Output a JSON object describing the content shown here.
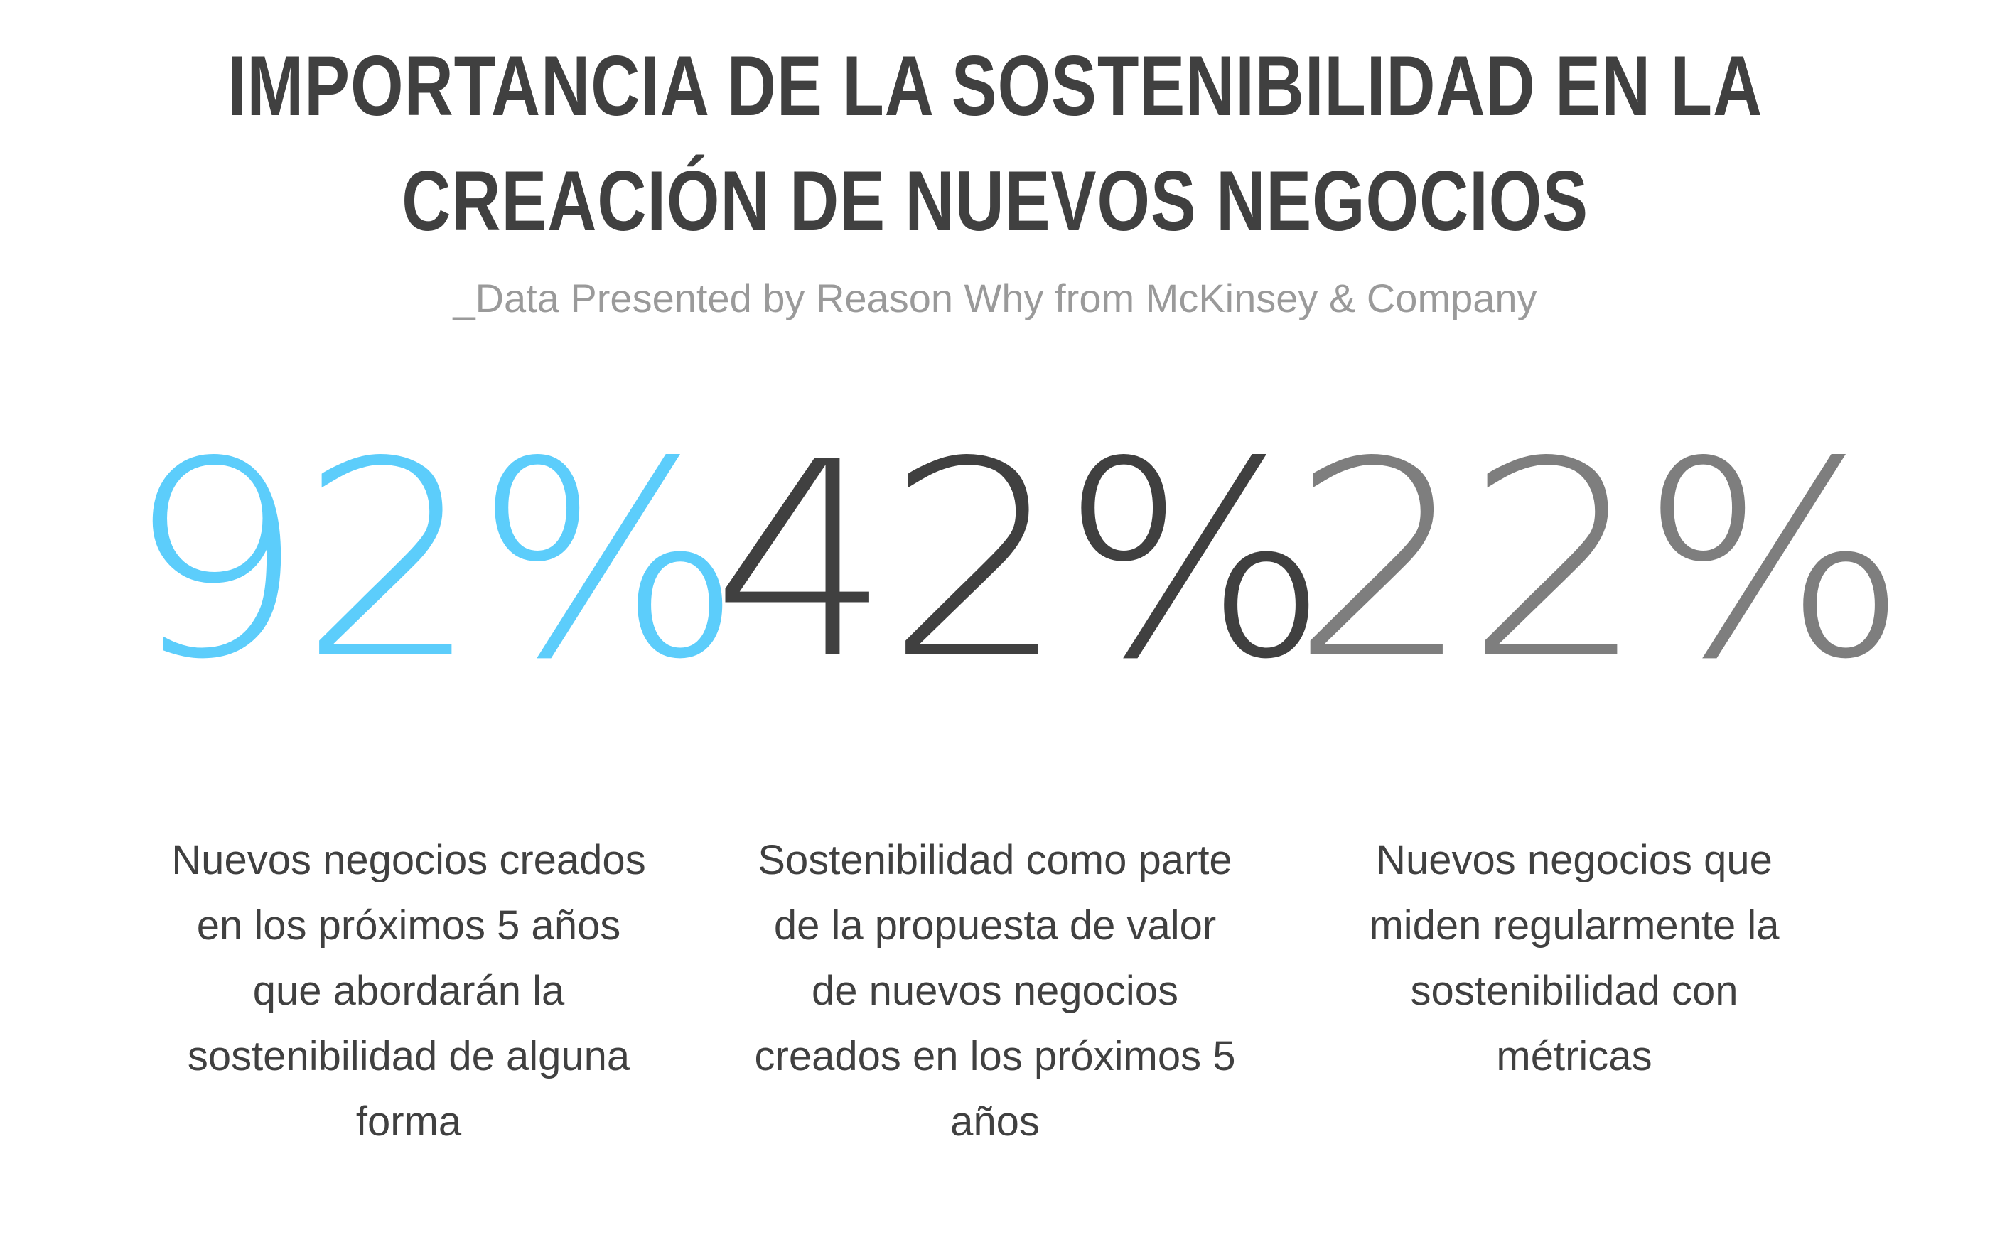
{
  "title": "IMPORTANCIA DE LA SOSTENIBILIDAD EN LA CREACIÓN DE NUEVOS NEGOCIOS",
  "subtitle": "_Data Presented by Reason Why from McKinsey & Company",
  "stats": [
    {
      "value": "92%",
      "color": "#5ccdfb",
      "description": "Nuevos negocios creados en los próximos 5 años que abordarán la sostenibilidad de alguna forma"
    },
    {
      "value": "42%",
      "color": "#404040",
      "description": "Sostenibilidad como parte de la propuesta de valor de nuevos negocios creados en los próximos 5 años"
    },
    {
      "value": "22%",
      "color": "#7e7e7e",
      "description": "Nuevos negocios que miden regularmente la sostenibilidad con métricas"
    }
  ]
}
